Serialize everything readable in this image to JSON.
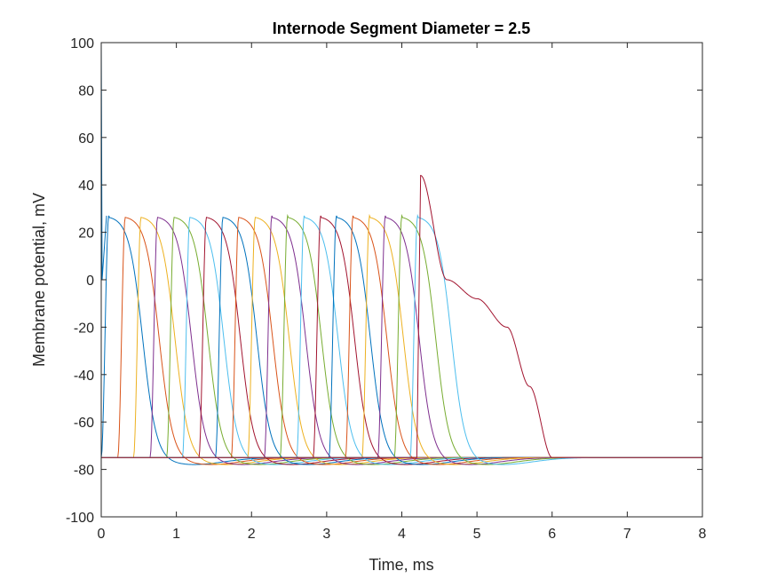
{
  "chart_data": {
    "type": "line",
    "title": "Internode Segment Diameter = 2.5",
    "xlabel": "Time, ms",
    "ylabel": "Membrane potential, mV",
    "xlim": [
      0,
      8
    ],
    "ylim": [
      -100,
      100
    ],
    "xticks": [
      0,
      1,
      2,
      3,
      4,
      5,
      6,
      7,
      8
    ],
    "yticks": [
      -100,
      -80,
      -60,
      -40,
      -20,
      0,
      20,
      40,
      60,
      80,
      100
    ],
    "xtick_labels": [
      "0",
      "1",
      "2",
      "3",
      "4",
      "5",
      "6",
      "7",
      "8"
    ],
    "ytick_labels": [
      "-100",
      "-80",
      "-60",
      "-40",
      "-20",
      "0",
      "20",
      "40",
      "60",
      "80",
      "100"
    ],
    "grid": false,
    "legend": "none",
    "colors": [
      "#0072BD",
      "#D95319",
      "#EDB120",
      "#7E2F8E",
      "#77AC30",
      "#4DBEEE",
      "#A2142F"
    ],
    "resting_potential": -75,
    "spike_peak": 27,
    "spike_onsets_ms": [
      0.0,
      0.22,
      0.43,
      0.65,
      0.87,
      1.08,
      1.3,
      1.52,
      1.73,
      1.95,
      2.17,
      2.38,
      2.6,
      2.82,
      3.03,
      3.25,
      3.47,
      3.68,
      3.9,
      4.11
    ],
    "final_spike": {
      "onset_ms": 4.2,
      "peak": 44,
      "shoulder": [
        [
          4.6,
          0
        ],
        [
          5.0,
          -8
        ],
        [
          5.4,
          -20
        ],
        [
          5.7,
          -45
        ],
        [
          6.0,
          -75
        ]
      ]
    },
    "stimulus_artifact": {
      "x": 0.0,
      "peak": 100
    }
  }
}
